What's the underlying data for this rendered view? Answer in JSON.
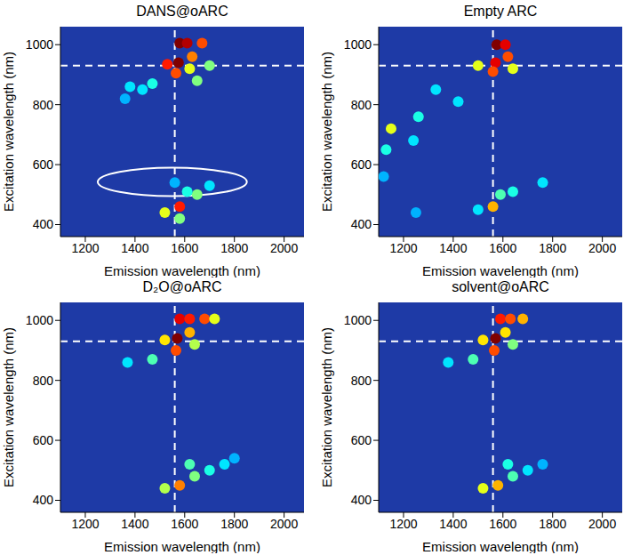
{
  "chart_data": [
    {
      "type": "scatter",
      "title": "DANS@oARC",
      "x_label": "Emission wavelength (nm)",
      "y_label": "Excitation wavelength (nm)",
      "xlim": [
        1100,
        2080
      ],
      "ylim": [
        360,
        1060
      ],
      "xticks": [
        1200,
        1400,
        1600,
        1800,
        2000
      ],
      "yticks": [
        400,
        600,
        800,
        1000
      ],
      "grid": false,
      "zlim": [
        0,
        1
      ],
      "reference_lines": [
        {
          "axis": "x",
          "value": 1560
        },
        {
          "axis": "y",
          "value": 930
        }
      ],
      "ellipse": {
        "x": [
          1250,
          1850
        ],
        "y": [
          495,
          590
        ]
      },
      "cells": [
        {
          "x": 1580,
          "y": 1005,
          "z": 1
        },
        {
          "x": 1610,
          "y": 1005,
          "z": 0.95
        },
        {
          "x": 1670,
          "y": 1005,
          "z": 0.8
        },
        {
          "x": 1530,
          "y": 935,
          "z": 0.85
        },
        {
          "x": 1575,
          "y": 940,
          "z": 1
        },
        {
          "x": 1565,
          "y": 905,
          "z": 0.8
        },
        {
          "x": 1630,
          "y": 960,
          "z": 0.75
        },
        {
          "x": 1620,
          "y": 920,
          "z": 0.6
        },
        {
          "x": 1700,
          "y": 930,
          "z": 0.5
        },
        {
          "x": 1650,
          "y": 880,
          "z": 0.5
        },
        {
          "x": 1470,
          "y": 870,
          "z": 0.4
        },
        {
          "x": 1380,
          "y": 860,
          "z": 0.35
        },
        {
          "x": 1360,
          "y": 820,
          "z": 0.3
        },
        {
          "x": 1430,
          "y": 850,
          "z": 0.35
        },
        {
          "x": 1580,
          "y": 460,
          "z": 0.85
        },
        {
          "x": 1520,
          "y": 440,
          "z": 0.6
        },
        {
          "x": 1580,
          "y": 420,
          "z": 0.5
        },
        {
          "x": 1650,
          "y": 500,
          "z": 0.5
        },
        {
          "x": 1610,
          "y": 510,
          "z": 0.4
        },
        {
          "x": 1700,
          "y": 530,
          "z": 0.35
        },
        {
          "x": 1560,
          "y": 540,
          "z": 0.3
        }
      ]
    },
    {
      "type": "scatter",
      "title": "Empty ARC",
      "x_label": "Emission wavelength (nm)",
      "y_label": "Excitation wavelength (nm)",
      "xlim": [
        1100,
        2080
      ],
      "ylim": [
        360,
        1060
      ],
      "xticks": [
        1200,
        1400,
        1600,
        1800,
        2000
      ],
      "yticks": [
        400,
        600,
        800,
        1000
      ],
      "grid": false,
      "zlim": [
        0,
        1
      ],
      "reference_lines": [
        {
          "axis": "x",
          "value": 1560
        },
        {
          "axis": "y",
          "value": 930
        }
      ],
      "cells": [
        {
          "x": 1575,
          "y": 1000,
          "z": 1
        },
        {
          "x": 1610,
          "y": 1000,
          "z": 0.9
        },
        {
          "x": 1570,
          "y": 940,
          "z": 0.9
        },
        {
          "x": 1560,
          "y": 910,
          "z": 0.8
        },
        {
          "x": 1620,
          "y": 960,
          "z": 0.8
        },
        {
          "x": 1640,
          "y": 920,
          "z": 0.6
        },
        {
          "x": 1500,
          "y": 930,
          "z": 0.6
        },
        {
          "x": 1150,
          "y": 720,
          "z": 0.6
        },
        {
          "x": 1260,
          "y": 760,
          "z": 0.4
        },
        {
          "x": 1240,
          "y": 680,
          "z": 0.35
        },
        {
          "x": 1330,
          "y": 850,
          "z": 0.35
        },
        {
          "x": 1420,
          "y": 810,
          "z": 0.35
        },
        {
          "x": 1560,
          "y": 460,
          "z": 0.7
        },
        {
          "x": 1590,
          "y": 500,
          "z": 0.45
        },
        {
          "x": 1640,
          "y": 510,
          "z": 0.4
        },
        {
          "x": 1760,
          "y": 540,
          "z": 0.35
        },
        {
          "x": 1130,
          "y": 650,
          "z": 0.4
        },
        {
          "x": 1120,
          "y": 560,
          "z": 0.3
        },
        {
          "x": 1250,
          "y": 440,
          "z": 0.3
        },
        {
          "x": 1500,
          "y": 450,
          "z": 0.35
        }
      ]
    },
    {
      "type": "scatter",
      "title": "D₂O@oARC",
      "x_label": "Emission wavelength (nm)",
      "y_label": "Excitation wavelength (nm)",
      "xlim": [
        1100,
        2080
      ],
      "ylim": [
        360,
        1060
      ],
      "xticks": [
        1200,
        1400,
        1600,
        1800,
        2000
      ],
      "yticks": [
        400,
        600,
        800,
        1000
      ],
      "grid": false,
      "zlim": [
        0,
        1
      ],
      "reference_lines": [
        {
          "axis": "x",
          "value": 1560
        },
        {
          "axis": "y",
          "value": 930
        }
      ],
      "cells": [
        {
          "x": 1580,
          "y": 1005,
          "z": 0.9
        },
        {
          "x": 1620,
          "y": 1005,
          "z": 0.85
        },
        {
          "x": 1680,
          "y": 1005,
          "z": 0.8
        },
        {
          "x": 1720,
          "y": 1005,
          "z": 0.6
        },
        {
          "x": 1520,
          "y": 935,
          "z": 0.65
        },
        {
          "x": 1570,
          "y": 940,
          "z": 1
        },
        {
          "x": 1565,
          "y": 900,
          "z": 0.8
        },
        {
          "x": 1620,
          "y": 960,
          "z": 0.7
        },
        {
          "x": 1640,
          "y": 920,
          "z": 0.55
        },
        {
          "x": 1470,
          "y": 870,
          "z": 0.45
        },
        {
          "x": 1370,
          "y": 860,
          "z": 0.35
        },
        {
          "x": 1580,
          "y": 450,
          "z": 0.75
        },
        {
          "x": 1520,
          "y": 440,
          "z": 0.55
        },
        {
          "x": 1640,
          "y": 480,
          "z": 0.5
        },
        {
          "x": 1620,
          "y": 520,
          "z": 0.45
        },
        {
          "x": 1700,
          "y": 500,
          "z": 0.4
        },
        {
          "x": 1760,
          "y": 520,
          "z": 0.35
        },
        {
          "x": 1800,
          "y": 540,
          "z": 0.3
        }
      ]
    },
    {
      "type": "scatter",
      "title": "solvent@oARC",
      "x_label": "Emission wavelength (nm)",
      "y_label": "Excitation wavelength (nm)",
      "xlim": [
        1100,
        2080
      ],
      "ylim": [
        360,
        1060
      ],
      "xticks": [
        1200,
        1400,
        1600,
        1800,
        2000
      ],
      "yticks": [
        400,
        600,
        800,
        1000
      ],
      "grid": false,
      "zlim": [
        0,
        1
      ],
      "reference_lines": [
        {
          "axis": "x",
          "value": 1560
        },
        {
          "axis": "y",
          "value": 930
        }
      ],
      "cells": [
        {
          "x": 1590,
          "y": 1005,
          "z": 0.85
        },
        {
          "x": 1630,
          "y": 1005,
          "z": 0.8
        },
        {
          "x": 1680,
          "y": 1005,
          "z": 0.7
        },
        {
          "x": 1520,
          "y": 935,
          "z": 0.65
        },
        {
          "x": 1570,
          "y": 940,
          "z": 1
        },
        {
          "x": 1565,
          "y": 900,
          "z": 0.8
        },
        {
          "x": 1610,
          "y": 960,
          "z": 0.65
        },
        {
          "x": 1640,
          "y": 920,
          "z": 0.5
        },
        {
          "x": 1480,
          "y": 870,
          "z": 0.45
        },
        {
          "x": 1380,
          "y": 860,
          "z": 0.35
        },
        {
          "x": 1520,
          "y": 440,
          "z": 0.6
        },
        {
          "x": 1580,
          "y": 450,
          "z": 0.7
        },
        {
          "x": 1640,
          "y": 480,
          "z": 0.45
        },
        {
          "x": 1620,
          "y": 520,
          "z": 0.4
        },
        {
          "x": 1700,
          "y": 500,
          "z": 0.35
        },
        {
          "x": 1760,
          "y": 520,
          "z": 0.3
        }
      ]
    }
  ]
}
